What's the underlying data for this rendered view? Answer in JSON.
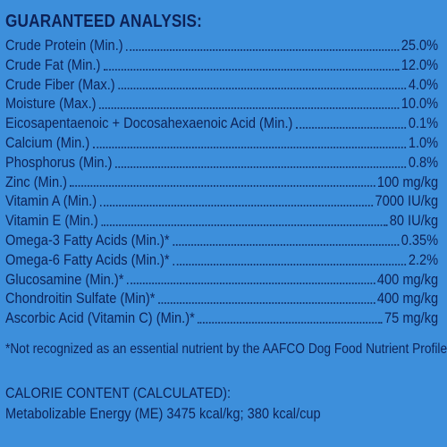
{
  "analysis": {
    "heading": "GUARANTEED ANALYSIS:",
    "rows": [
      {
        "label": "Crude Protein (Min.)",
        "value": "25.0%"
      },
      {
        "label": "Crude Fat (Min.)",
        "value": "12.0%"
      },
      {
        "label": "Crude Fiber (Max.)",
        "value": "4.0%"
      },
      {
        "label": "Moisture (Max.)",
        "value": "10.0%"
      },
      {
        "label": "Eicosapentaenoic + Docosahexaenoic Acid (Min.)",
        "value": "0.1%"
      },
      {
        "label": "Calcium (Min.)",
        "value": "1.0%"
      },
      {
        "label": "Phosphorus (Min.)",
        "value": "0.8%"
      },
      {
        "label": "Zinc (Min.)",
        "value": "100 mg/kg"
      },
      {
        "label": "Vitamin A (Min.)",
        "value": "7000 IU/kg"
      },
      {
        "label": "Vitamin E (Min.)",
        "value": "80 IU/kg"
      },
      {
        "label": "Omega-3 Fatty Acids (Min.)*",
        "value": "0.35%"
      },
      {
        "label": "Omega-6 Fatty Acids (Min.)*",
        "value": "2.2%"
      },
      {
        "label": "Glucosamine (Min.)*",
        "value": "400 mg/kg"
      },
      {
        "label": "Chondroitin Sulfate (Min)*",
        "value": "400 mg/kg"
      },
      {
        "label": "Ascorbic Acid (Vitamin C) (Min.)*",
        "value": "75 mg/kg"
      }
    ],
    "footnote": "*Not recognized as an essential nutrient by the AAFCO Dog Food Nutrient Profiles."
  },
  "calorie": {
    "heading": "CALORIE CONTENT (CALCULATED):",
    "line": "Metabolizable Energy (ME) 3475 kcal/kg; 380 kcal/cup"
  },
  "colors": {
    "background": "#3d8fdb",
    "text": "#0d2257"
  }
}
